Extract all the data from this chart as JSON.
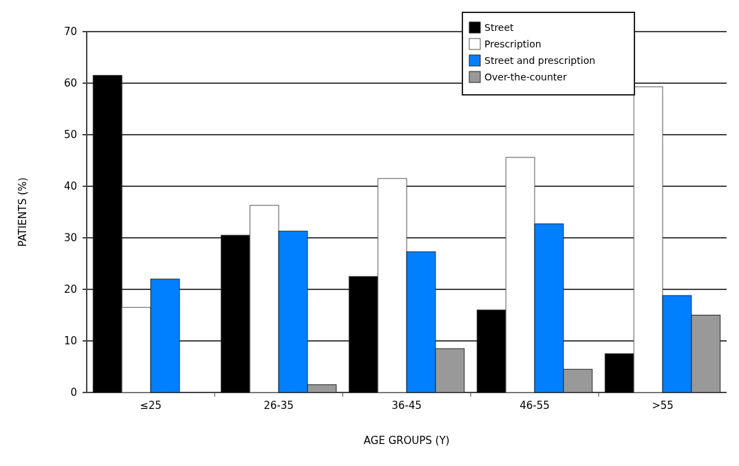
{
  "chart_data": {
    "type": "bar",
    "xlabel": "AGE GROUPS (Y)",
    "ylabel": "PATIENTS (%)",
    "categories": [
      "≤25",
      "26-35",
      "36-45",
      "46-55",
      ">55"
    ],
    "series": [
      {
        "name": "Street",
        "color": "#000000",
        "values": [
          61.5,
          30.5,
          22.5,
          16,
          7.5
        ]
      },
      {
        "name": "Prescription",
        "color": "#ffffff",
        "values": [
          16.5,
          36.3,
          41.5,
          45.6,
          59.3
        ]
      },
      {
        "name": "Street and prescription",
        "color": "#0080ff",
        "values": [
          22,
          31.3,
          27.3,
          32.7,
          18.8
        ]
      },
      {
        "name": "Over-the-counter",
        "color": "#999999",
        "values": [
          0,
          1.5,
          8.5,
          4.5,
          15
        ]
      }
    ],
    "ylim": [
      0,
      70
    ],
    "yticks": [
      0,
      10,
      20,
      30,
      40,
      50,
      60,
      70
    ],
    "grid": "y",
    "legend": "top right"
  }
}
